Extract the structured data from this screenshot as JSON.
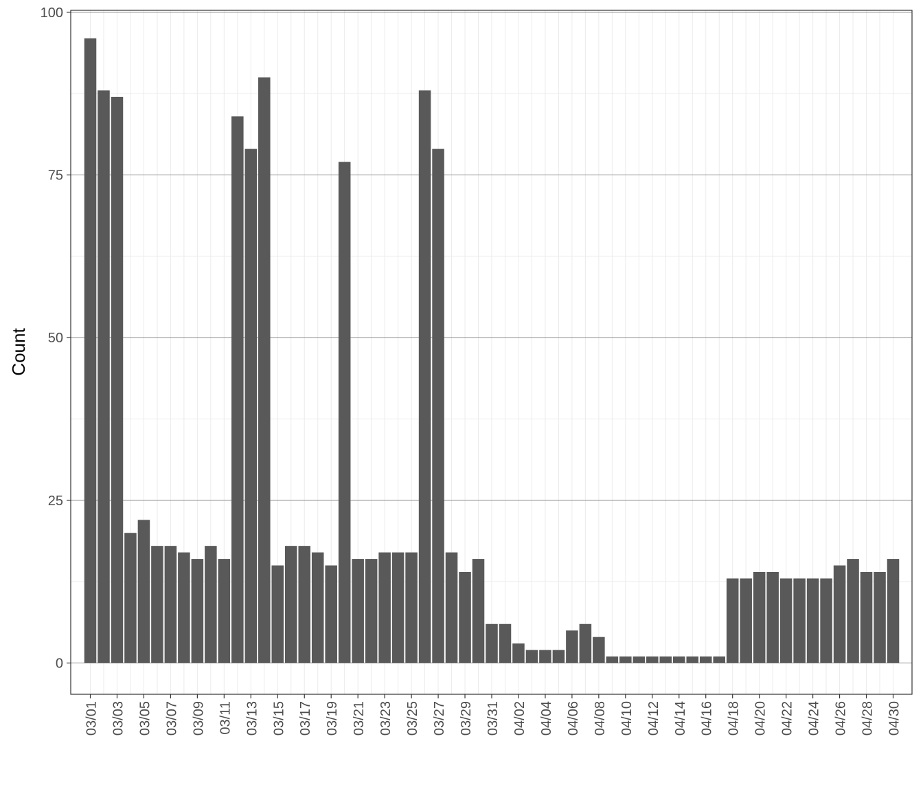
{
  "chart_data": {
    "type": "bar",
    "title": "",
    "xlabel": "",
    "ylabel": "Count",
    "ylim": [
      -4.8,
      100.3
    ],
    "yticks": [
      0,
      25,
      50,
      75,
      100
    ],
    "grid": true,
    "legend": "none",
    "bar_color": "#595959",
    "categories": [
      "03/01",
      "03/02",
      "03/03",
      "03/04",
      "03/05",
      "03/06",
      "03/07",
      "03/08",
      "03/09",
      "03/10",
      "03/11",
      "03/12",
      "03/13",
      "03/14",
      "03/15",
      "03/16",
      "03/17",
      "03/18",
      "03/19",
      "03/20",
      "03/21",
      "03/22",
      "03/23",
      "03/24",
      "03/25",
      "03/26",
      "03/27",
      "03/28",
      "03/29",
      "03/30",
      "03/31",
      "04/01",
      "04/02",
      "04/03",
      "04/04",
      "04/05",
      "04/06",
      "04/07",
      "04/08",
      "04/09",
      "04/10",
      "04/11",
      "04/12",
      "04/13",
      "04/14",
      "04/15",
      "04/16",
      "04/17",
      "04/18",
      "04/19",
      "04/20",
      "04/21",
      "04/22",
      "04/23",
      "04/24",
      "04/25",
      "04/26",
      "04/27",
      "04/28",
      "04/29",
      "04/30"
    ],
    "tick_labels": [
      "03/01",
      "03/03",
      "03/05",
      "03/07",
      "03/09",
      "03/11",
      "03/13",
      "03/15",
      "03/17",
      "03/19",
      "03/21",
      "03/23",
      "03/25",
      "03/27",
      "03/29",
      "03/31",
      "04/02",
      "04/04",
      "04/06",
      "04/08",
      "04/10",
      "04/12",
      "04/14",
      "04/16",
      "04/18",
      "04/20",
      "04/22",
      "04/24",
      "04/26",
      "04/28",
      "04/30"
    ],
    "values": [
      96,
      88,
      87,
      20,
      22,
      18,
      18,
      17,
      16,
      18,
      16,
      84,
      79,
      90,
      15,
      18,
      18,
      17,
      15,
      77,
      16,
      16,
      17,
      17,
      17,
      88,
      79,
      17,
      14,
      16,
      6,
      6,
      3,
      2,
      2,
      2,
      5,
      6,
      4,
      1,
      1,
      1,
      1,
      1,
      1,
      1,
      1,
      1,
      13,
      13,
      14,
      14,
      13,
      13,
      13,
      13,
      15,
      16,
      14,
      14,
      16
    ]
  }
}
